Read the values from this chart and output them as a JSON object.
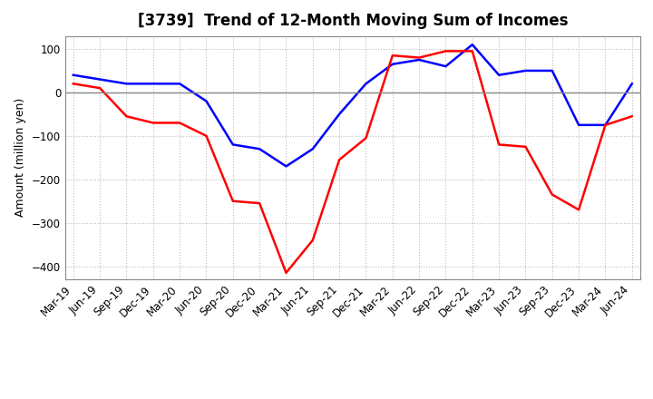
{
  "title": "[3739]  Trend of 12-Month Moving Sum of Incomes",
  "ylabel": "Amount (million yen)",
  "x_labels": [
    "Mar-19",
    "Jun-19",
    "Sep-19",
    "Dec-19",
    "Mar-20",
    "Jun-20",
    "Sep-20",
    "Dec-20",
    "Mar-21",
    "Jun-21",
    "Sep-21",
    "Dec-21",
    "Mar-22",
    "Jun-22",
    "Sep-22",
    "Dec-22",
    "Mar-23",
    "Jun-23",
    "Sep-23",
    "Dec-23",
    "Mar-24",
    "Jun-24"
  ],
  "ordinary_income": [
    40,
    30,
    20,
    20,
    20,
    -20,
    -120,
    -130,
    -170,
    -130,
    -50,
    20,
    65,
    75,
    60,
    110,
    40,
    50,
    50,
    -75,
    -75,
    20
  ],
  "net_income": [
    20,
    10,
    -55,
    -70,
    -70,
    -100,
    -250,
    -255,
    -415,
    -340,
    -155,
    -105,
    85,
    80,
    95,
    95,
    -120,
    -125,
    -235,
    -270,
    -75,
    -55
  ],
  "ordinary_color": "#0000FF",
  "net_color": "#FF0000",
  "ylim": [
    -430,
    130
  ],
  "yticks": [
    -400,
    -300,
    -200,
    -100,
    0,
    100
  ],
  "bg_color": "#FFFFFF",
  "plot_bg_color": "#FFFFFF",
  "grid_color": "#BBBBBB",
  "zero_line_color": "#888888",
  "title_fontsize": 12,
  "axis_fontsize": 8.5,
  "ylabel_fontsize": 9,
  "legend_fontsize": 9,
  "line_width": 1.8
}
